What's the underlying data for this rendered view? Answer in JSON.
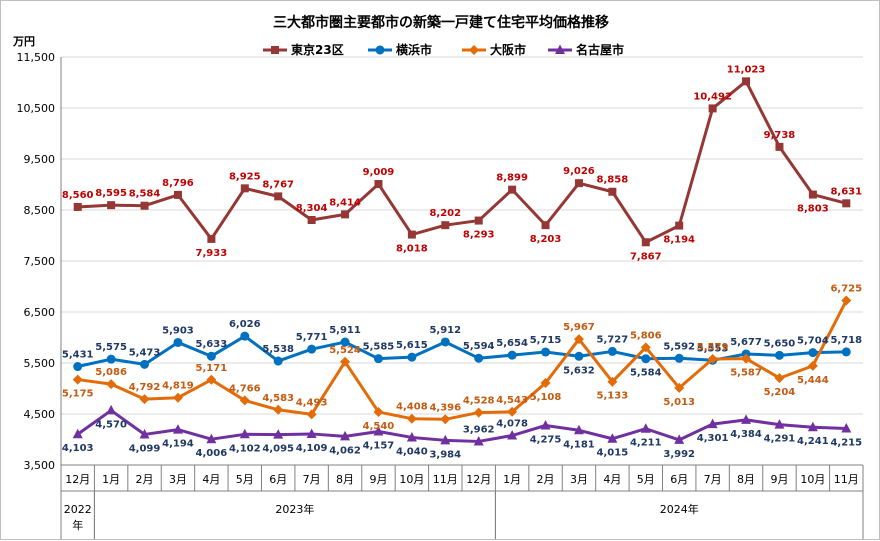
{
  "chart_data": {
    "type": "line",
    "title": "三大都市圏主要都市の新築一戸建て住宅平均価格推移",
    "unit": "万円",
    "ylim": [
      3500,
      11500
    ],
    "yticks": [
      3500,
      4500,
      5500,
      6500,
      7500,
      8500,
      9500,
      10500,
      11500
    ],
    "ytick_labels": [
      "3,500",
      "4,500",
      "5,500",
      "6,500",
      "7,500",
      "8,500",
      "9,500",
      "10,500",
      "11,500"
    ],
    "grid": true,
    "legend_position": "top",
    "categories": [
      "12月",
      "1月",
      "2月",
      "3月",
      "4月",
      "5月",
      "6月",
      "7月",
      "8月",
      "9月",
      "10月",
      "11月",
      "12月",
      "1月",
      "2月",
      "3月",
      "4月",
      "5月",
      "6月",
      "7月",
      "8月",
      "9月",
      "10月",
      "11月"
    ],
    "year_groups": [
      {
        "label": "2022年",
        "start": 0,
        "end": 0
      },
      {
        "label": "2023年",
        "start": 1,
        "end": 12
      },
      {
        "label": "2024年",
        "start": 13,
        "end": 23
      }
    ],
    "series": [
      {
        "name": "東京23区",
        "color": "#953735",
        "marker": "square",
        "values": [
          8560,
          8595,
          8584,
          8796,
          7933,
          8925,
          8767,
          8304,
          8414,
          9009,
          8018,
          8202,
          8293,
          8899,
          8203,
          9026,
          8858,
          7867,
          8194,
          10492,
          11023,
          9738,
          8803,
          8631
        ],
        "labels": [
          "8,560",
          "8,595",
          "8,584",
          "8,796",
          "7,933",
          "8,925",
          "8,767",
          "8,304",
          "8,414",
          "9,009",
          "8,018",
          "8,202",
          "8,293",
          "8,899",
          "8,203",
          "9,026",
          "8,858",
          "7,867",
          "8,194",
          "10,492",
          "11,023",
          "9,738",
          "8,803",
          "8,631"
        ],
        "label_color": "#c00000",
        "label_pos": [
          "above",
          "above",
          "above",
          "above",
          "below",
          "above",
          "above",
          "above",
          "above",
          "above",
          "below",
          "above",
          "below",
          "above",
          "below",
          "above",
          "above",
          "below",
          "below",
          "above",
          "above",
          "above",
          "below",
          "above"
        ]
      },
      {
        "name": "横浜市",
        "color": "#0070c0",
        "marker": "circle",
        "values": [
          5431,
          5575,
          5473,
          5903,
          5633,
          6026,
          5538,
          5771,
          5911,
          5585,
          5615,
          5912,
          5594,
          5654,
          5715,
          5632,
          5727,
          5584,
          5592,
          5553,
          5677,
          5650,
          5704,
          5718
        ],
        "labels": [
          "5,431",
          "5,575",
          "5,473",
          "5,903",
          "5,633",
          "6,026",
          "5,538",
          "5,771",
          "5,911",
          "5,585",
          "5,615",
          "5,912",
          "5,594",
          "5,654",
          "5,715",
          "5,632",
          "5,727",
          "5,584",
          "5,592",
          "5,553",
          "5,677",
          "5,650",
          "5,704",
          "5,718"
        ],
        "label_color": "#1f3864",
        "label_pos": [
          "above",
          "above",
          "above",
          "above",
          "above",
          "above",
          "above",
          "above",
          "above",
          "above",
          "above",
          "above",
          "above",
          "above",
          "above",
          "below",
          "above",
          "below",
          "above",
          "above",
          "above",
          "above",
          "above",
          "above"
        ]
      },
      {
        "name": "大阪市",
        "color": "#e36c09",
        "marker": "diamond",
        "values": [
          5175,
          5086,
          4792,
          4819,
          5171,
          4766,
          4583,
          4493,
          5524,
          4540,
          4408,
          4396,
          4528,
          4543,
          5108,
          5967,
          5133,
          5806,
          5013,
          5579,
          5587,
          5204,
          5444,
          6725
        ],
        "labels": [
          "5,175",
          "5,086",
          "4,792",
          "4,819",
          "5,171",
          "4,766",
          "4,583",
          "4,493",
          "5,524",
          "4,540",
          "4,408",
          "4,396",
          "4,528",
          "4,543",
          "5,108",
          "5,967",
          "5,133",
          "5,806",
          "5,013",
          "5,579",
          "5,587",
          "5,204",
          "5,444",
          "6,725"
        ],
        "label_color": "#c55a11",
        "label_pos": [
          "below",
          "above",
          "above",
          "above",
          "above",
          "above",
          "above",
          "above",
          "above",
          "below",
          "above",
          "above",
          "above",
          "above",
          "below",
          "above",
          "below",
          "above",
          "below",
          "above",
          "below",
          "below",
          "below",
          "above"
        ]
      },
      {
        "name": "名古屋市",
        "color": "#7030a0",
        "marker": "triangle",
        "values": [
          4103,
          4570,
          4099,
          4194,
          4006,
          4102,
          4095,
          4109,
          4062,
          4157,
          4040,
          3984,
          3962,
          4078,
          4275,
          4181,
          4015,
          4211,
          3992,
          4301,
          4384,
          4291,
          4241,
          4215
        ],
        "labels": [
          "4,103",
          "4,570",
          "4,099",
          "4,194",
          "4,006",
          "4,102",
          "4,095",
          "4,109",
          "4,062",
          "4,157",
          "4,040",
          "3,984",
          "3,962",
          "4,078",
          "4,275",
          "4,181",
          "4,015",
          "4,211",
          "3,992",
          "4,301",
          "4,384",
          "4,291",
          "4,241",
          "4,215"
        ],
        "label_color": "#1f3864",
        "label_pos": [
          "below",
          "below",
          "below",
          "below",
          "below",
          "below",
          "below",
          "below",
          "below",
          "below",
          "below",
          "below",
          "above",
          "above",
          "below",
          "below",
          "below",
          "below",
          "below",
          "below",
          "below",
          "below",
          "below",
          "below"
        ]
      }
    ]
  }
}
